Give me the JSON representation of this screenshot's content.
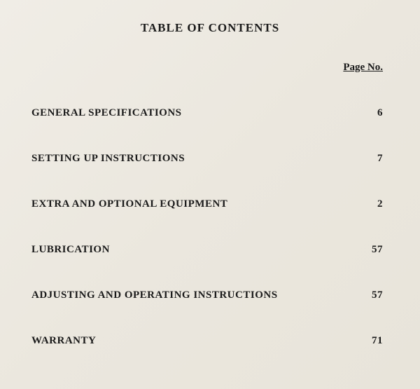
{
  "title": "TABLE OF CONTENTS",
  "page_header": "Page No.",
  "entries": [
    {
      "label": "GENERAL SPECIFICATIONS",
      "page": "6"
    },
    {
      "label": "SETTING UP INSTRUCTIONS",
      "page": "7"
    },
    {
      "label": "EXTRA AND OPTIONAL EQUIPMENT",
      "page": "2"
    },
    {
      "label": "LUBRICATION",
      "page": "57"
    },
    {
      "label": "ADJUSTING AND OPERATING INSTRUCTIONS",
      "page": "57"
    },
    {
      "label": "WARRANTY",
      "page": "71"
    }
  ],
  "style": {
    "background_gradient": [
      "#f0ede6",
      "#ebe7de",
      "#e8e4da"
    ],
    "text_color": "#1a1a1a",
    "title_fontsize": 17,
    "header_fontsize": 15,
    "entry_fontsize": 15,
    "row_gap": 48,
    "font_family": "Georgia, Times New Roman, serif"
  }
}
